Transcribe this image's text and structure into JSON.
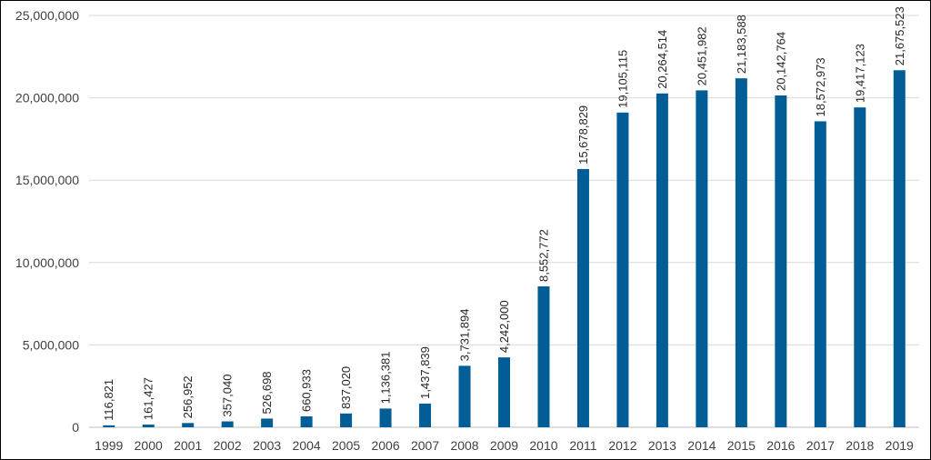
{
  "chart_data": {
    "type": "bar",
    "title": "",
    "xlabel": "",
    "ylabel": "",
    "categories": [
      "1999",
      "2000",
      "2001",
      "2002",
      "2003",
      "2004",
      "2005",
      "2006",
      "2007",
      "2008",
      "2009",
      "2010",
      "2011",
      "2012",
      "2013",
      "2014",
      "2015",
      "2016",
      "2017",
      "2018",
      "2019"
    ],
    "values": [
      116821,
      161427,
      256952,
      357040,
      526698,
      660933,
      837020,
      1136381,
      1437839,
      3731894,
      4242000,
      8552772,
      15678829,
      19105115,
      20264514,
      20451982,
      21183588,
      20142764,
      18572973,
      19417123,
      21675523
    ],
    "data_labels": [
      "116,821",
      "161,427",
      "256,952",
      "357,040",
      "526,698",
      "660,933",
      "837,020",
      "1,136,381",
      "1,437,839",
      "3,731,894",
      "4,242,000",
      "8,552,772",
      "15,678,829",
      "19,105,115",
      "20,264,514",
      "20,451,982",
      "21,183,588",
      "20,142,764",
      "18,572,973",
      "19,417,123",
      "21,675,523"
    ],
    "ylim": [
      0,
      25000000
    ],
    "y_ticks": [
      0,
      5000000,
      10000000,
      15000000,
      20000000,
      25000000
    ],
    "y_tick_labels": [
      "0",
      "5,000,000",
      "10,000,000",
      "15,000,000",
      "20,000,000",
      "25,000,000"
    ],
    "grid": true,
    "legend": "none",
    "bar_color": "#005d96",
    "grid_color": "#d9d9d9"
  }
}
